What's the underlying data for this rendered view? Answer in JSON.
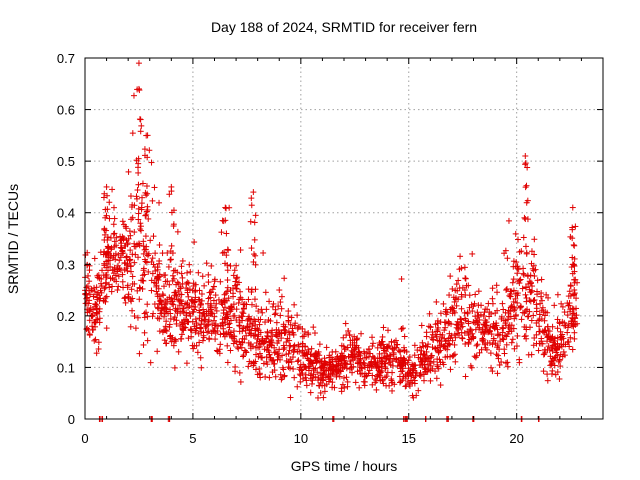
{
  "chart_data": {
    "type": "scatter",
    "title": "Day 188 of 2024, SRMTID for receiver fern",
    "xlabel": "GPS time / hours",
    "ylabel": "SRMTID / TECUs",
    "xlim": [
      0,
      24
    ],
    "ylim": [
      0,
      0.7
    ],
    "xticks": [
      0,
      5,
      10,
      15,
      20
    ],
    "xtick_labels": [
      "0",
      "5",
      "10",
      "15",
      "20"
    ],
    "yticks": [
      0,
      0.1,
      0.2,
      0.3,
      0.4,
      0.5,
      0.6,
      0.7
    ],
    "ytick_labels": [
      "0",
      "0.1",
      "0.2",
      "0.3",
      "0.4",
      "0.5",
      "0.6",
      "0.7"
    ],
    "grid": true,
    "marker": "+",
    "marker_color": "#e00000",
    "series_trend": {
      "name": "SRMTID",
      "description": "envelope of dense point cloud (approximate median and spread by hour)",
      "x": [
        0.0,
        0.5,
        1.0,
        1.5,
        2.0,
        2.5,
        3.0,
        3.5,
        4.0,
        4.5,
        5.0,
        5.5,
        6.0,
        6.5,
        7.0,
        7.5,
        8.0,
        8.5,
        9.0,
        9.5,
        10.0,
        10.5,
        11.0,
        11.5,
        12.0,
        12.5,
        13.0,
        13.5,
        14.0,
        14.5,
        15.0,
        15.5,
        16.0,
        16.5,
        17.0,
        17.5,
        18.0,
        18.5,
        19.0,
        19.5,
        20.0,
        20.5,
        21.0,
        21.5,
        22.0,
        22.5,
        23.0
      ],
      "median": [
        0.24,
        0.2,
        0.3,
        0.3,
        0.3,
        0.33,
        0.3,
        0.22,
        0.22,
        0.22,
        0.2,
        0.2,
        0.2,
        0.19,
        0.2,
        0.16,
        0.15,
        0.14,
        0.16,
        0.14,
        0.12,
        0.11,
        0.09,
        0.1,
        0.11,
        0.12,
        0.1,
        0.11,
        0.11,
        0.12,
        0.09,
        0.1,
        0.13,
        0.15,
        0.19,
        0.2,
        0.18,
        0.17,
        0.16,
        0.17,
        0.22,
        0.25,
        0.2,
        0.15,
        0.14,
        0.2,
        0.25
      ],
      "spread": [
        0.08,
        0.06,
        0.08,
        0.07,
        0.09,
        0.16,
        0.12,
        0.07,
        0.09,
        0.06,
        0.06,
        0.06,
        0.07,
        0.08,
        0.09,
        0.07,
        0.08,
        0.05,
        0.07,
        0.05,
        0.05,
        0.04,
        0.04,
        0.03,
        0.04,
        0.04,
        0.03,
        0.04,
        0.04,
        0.05,
        0.03,
        0.04,
        0.05,
        0.06,
        0.07,
        0.07,
        0.07,
        0.06,
        0.06,
        0.07,
        0.12,
        0.1,
        0.06,
        0.05,
        0.05,
        0.08,
        0.05
      ]
    },
    "notable_peaks": [
      {
        "x": 2.5,
        "y": 0.64
      },
      {
        "x": 2.9,
        "y": 0.55
      },
      {
        "x": 4.0,
        "y": 0.45
      },
      {
        "x": 1.0,
        "y": 0.45
      },
      {
        "x": 6.5,
        "y": 0.41
      },
      {
        "x": 7.8,
        "y": 0.44
      },
      {
        "x": 20.4,
        "y": 0.51
      },
      {
        "x": 22.6,
        "y": 0.41
      }
    ],
    "zero_markers_x": [
      0.7,
      0.8,
      3.1,
      3.9,
      11.5,
      14.8,
      14.9,
      15.8,
      16.8,
      18.0,
      20.2,
      21.0
    ]
  }
}
